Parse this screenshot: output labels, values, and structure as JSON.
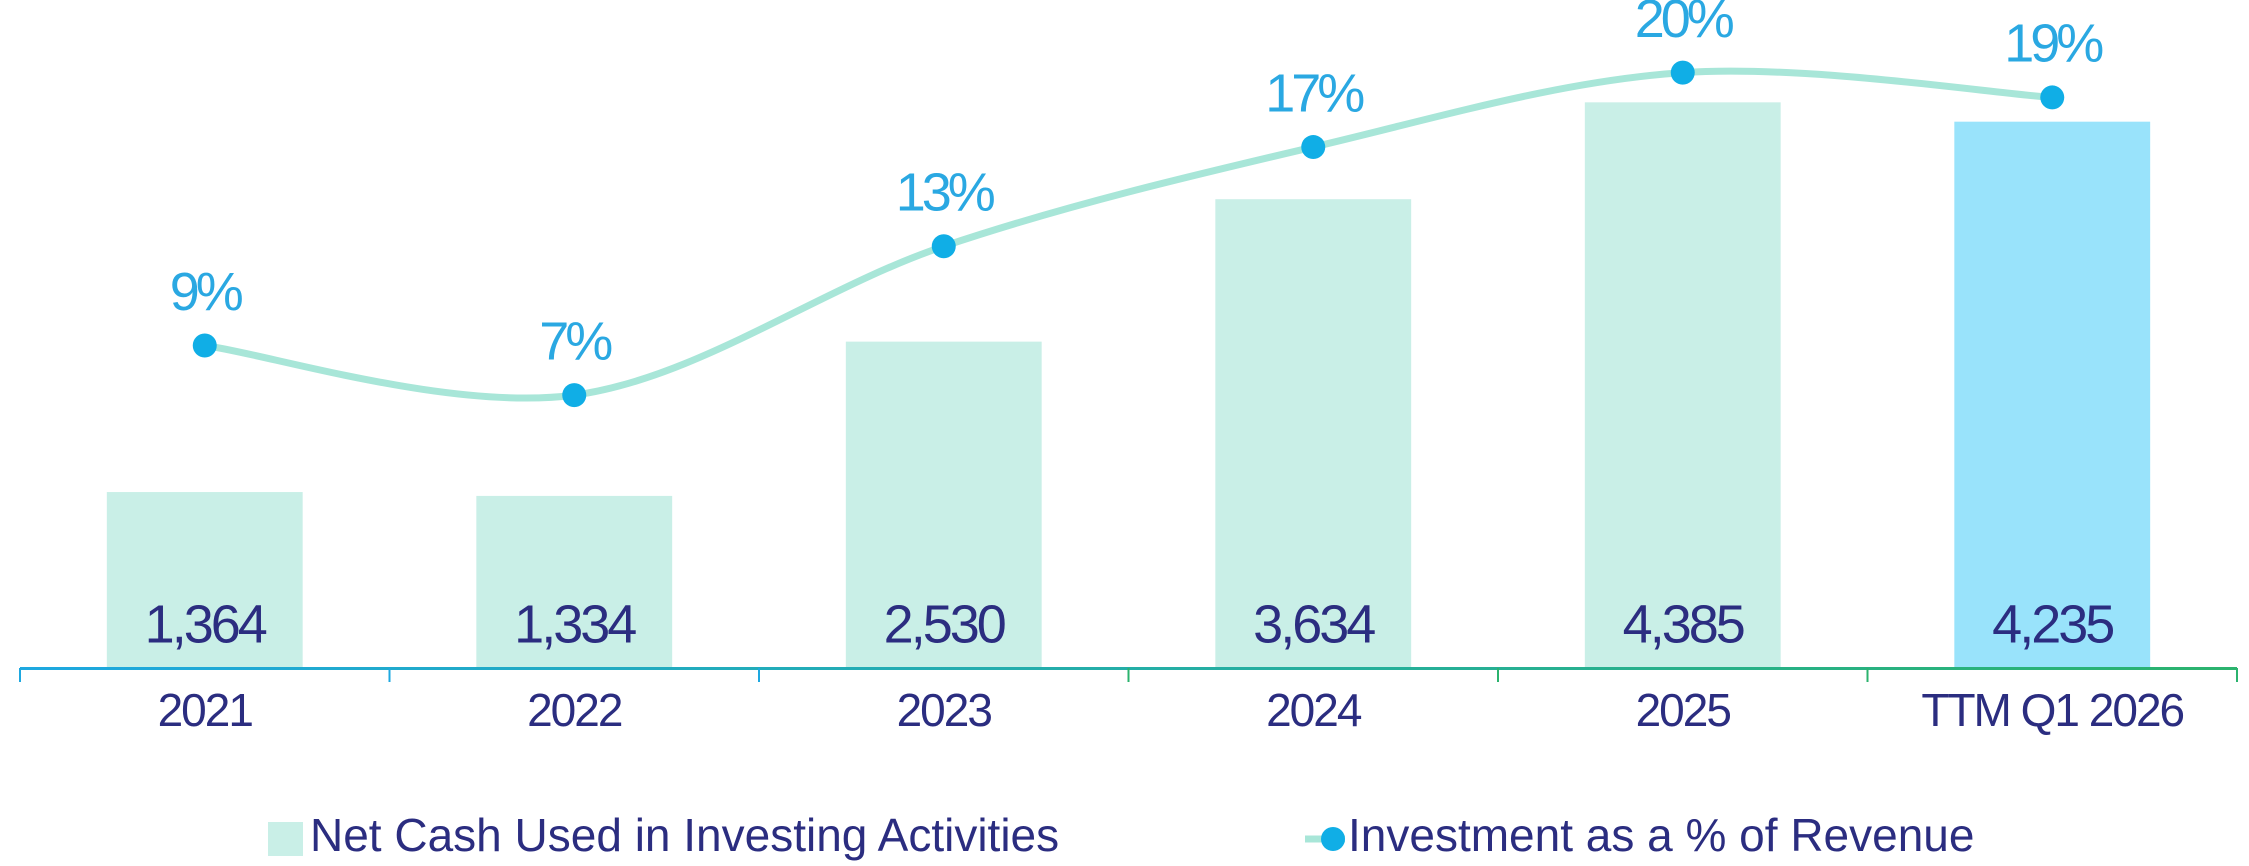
{
  "chart_data": {
    "type": "bar",
    "categories": [
      "2021",
      "2022",
      "2023",
      "2024",
      "2025",
      "TTM Q1 2026"
    ],
    "series": [
      {
        "name": "Net Cash Used in Investing Activities",
        "type": "bar",
        "color": "#c9efe7",
        "colors": [
          "#c9efe7",
          "#c9efe7",
          "#c9efe7",
          "#c9efe7",
          "#c9efe7",
          "#99e3fb"
        ],
        "values": [
          1364,
          1334,
          2530,
          3634,
          4385,
          4235
        ],
        "value_labels": [
          "1,364",
          "1,334",
          "2,530",
          "3,634",
          "4,385",
          "4,235"
        ]
      },
      {
        "name": "Investment as a % of Revenue",
        "type": "line",
        "axis": "y2",
        "color": "#a8e6d8",
        "marker_color": "#10aee6",
        "values": [
          9,
          7,
          13,
          17,
          20,
          19
        ],
        "value_labels": [
          "9%",
          "7%",
          "13%",
          "17%",
          "20%",
          "19%"
        ]
      }
    ],
    "ylim": [
      0,
      5000
    ],
    "y2lim": [
      -4,
      22
    ],
    "legend": "bottom"
  }
}
